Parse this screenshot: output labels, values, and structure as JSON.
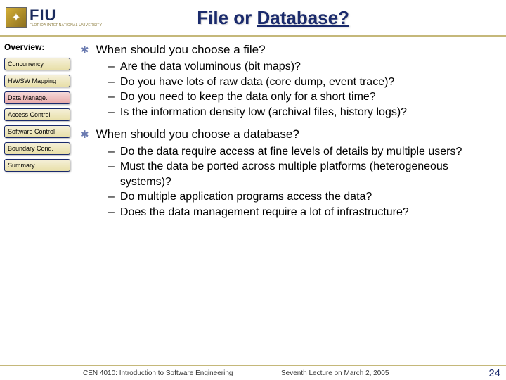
{
  "header": {
    "logo_main": "FIU",
    "logo_sub": "FLORIDA INTERNATIONAL UNIVERSITY",
    "title_plain": "File or ",
    "title_under": "Database?"
  },
  "sidebar": {
    "heading": "Overview:",
    "items": [
      {
        "label": "Concurrency",
        "active": false
      },
      {
        "label": "HW/SW Mapping",
        "active": false
      },
      {
        "label": "Data Manage.",
        "active": true
      },
      {
        "label": "Access Control",
        "active": false
      },
      {
        "label": "Software Control",
        "active": false
      },
      {
        "label": "Boundary Cond.",
        "active": false
      },
      {
        "label": "Summary",
        "active": false
      }
    ]
  },
  "content": {
    "sections": [
      {
        "question": "When should you  choose a file?",
        "subs": [
          "Are the data voluminous (bit maps)?",
          "Do you have lots of raw data (core dump, event trace)?",
          "Do you need to keep the data only for a short time?",
          "Is the information density low (archival files, history logs)?"
        ]
      },
      {
        "question": "When should you choose a database?",
        "subs": [
          "Do the data require access at fine levels of details by multiple users?",
          "Must the data be ported across multiple platforms (heterogeneous systems)?",
          "Do multiple application programs access the data?",
          "Does the data management require a lot of infrastructure?"
        ]
      }
    ]
  },
  "footer": {
    "left": "CEN 4010: Introduction to Software Engineering",
    "mid": "Seventh Lecture on March 2, 2005",
    "page": "24"
  }
}
